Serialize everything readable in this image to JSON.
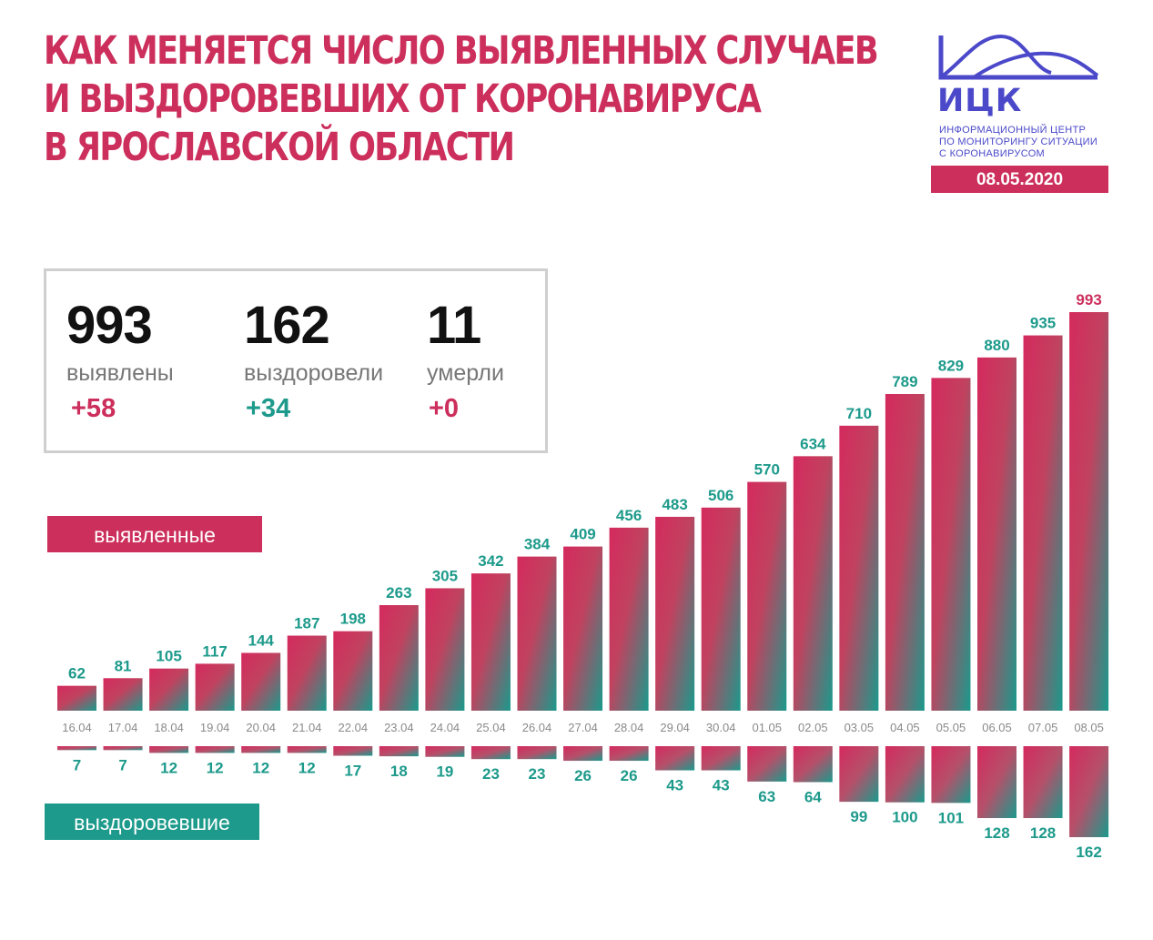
{
  "title_lines": [
    "КАК МЕНЯЕТСЯ ЧИСЛО ВЫЯВЛЕННЫХ СЛУЧАЕВ",
    "И ВЫЗДОРОВЕВШИХ ОТ КОРОНАВИРУСА",
    "В ЯРОСЛАВСКОЙ ОБЛАСТИ"
  ],
  "logo": {
    "abbr": "ИЦК",
    "sub_lines": [
      "ИНФОРМАЦИОННЫЙ ЦЕНТР",
      "ПО МОНИТОРИНГУ СИТУАЦИИ",
      "С КОРОНАВИРУСОМ"
    ]
  },
  "date": "08.05.2020",
  "stats": [
    {
      "value": "993",
      "label": "выявлены",
      "delta": "+58"
    },
    {
      "value": "162",
      "label": "выздоровели",
      "delta": "+34"
    },
    {
      "value": "11",
      "label": "умерли",
      "delta": "+0"
    }
  ],
  "legend": {
    "detected": "выявленные",
    "recovered": "выздоровевшие"
  },
  "colors": {
    "pink": "#cc2f5c",
    "teal": "#1d9a8b",
    "date_gray": "#8a8a8a"
  },
  "chart_data": {
    "type": "bar",
    "categories": [
      "16.04",
      "17.04",
      "18.04",
      "19.04",
      "20.04",
      "21.04",
      "22.04",
      "23.04",
      "24.04",
      "25.04",
      "26.04",
      "27.04",
      "28.04",
      "29.04",
      "30.04",
      "01.05",
      "02.05",
      "03.05",
      "04.05",
      "05.05",
      "06.05",
      "07.05",
      "08.05"
    ],
    "series": [
      {
        "name": "выявленные",
        "values": [
          62,
          81,
          105,
          117,
          144,
          187,
          198,
          263,
          305,
          342,
          384,
          409,
          456,
          483,
          506,
          570,
          634,
          710,
          789,
          829,
          880,
          935,
          993
        ]
      },
      {
        "name": "выздоровевшие",
        "values": [
          7,
          7,
          12,
          12,
          12,
          12,
          17,
          18,
          19,
          23,
          23,
          26,
          26,
          43,
          43,
          63,
          64,
          99,
          100,
          101,
          128,
          128,
          162
        ]
      }
    ]
  }
}
